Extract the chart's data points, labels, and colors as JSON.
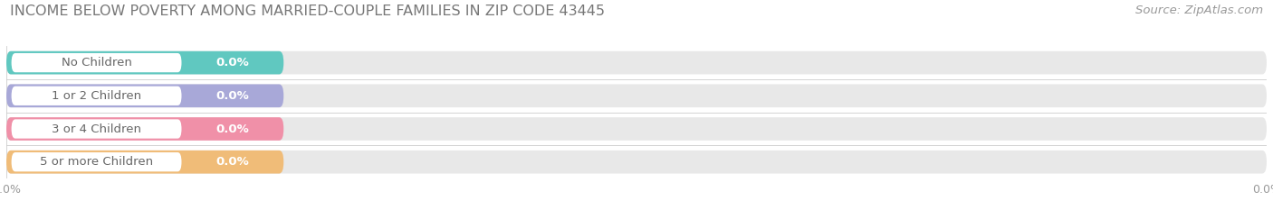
{
  "title": "INCOME BELOW POVERTY AMONG MARRIED-COUPLE FAMILIES IN ZIP CODE 43445",
  "source": "Source: ZipAtlas.com",
  "categories": [
    "No Children",
    "1 or 2 Children",
    "3 or 4 Children",
    "5 or more Children"
  ],
  "values": [
    0.0,
    0.0,
    0.0,
    0.0
  ],
  "bar_colors": [
    "#60c8c0",
    "#a8a8d8",
    "#f090a8",
    "#f0bc78"
  ],
  "bar_bg_color": "#e8e8e8",
  "label_bg_color": "#ffffff",
  "title_fontsize": 11.5,
  "source_fontsize": 9.5,
  "label_fontsize": 9.5,
  "value_fontsize": 9.5,
  "tick_fontsize": 9,
  "background_color": "#ffffff",
  "fig_width": 14.06,
  "fig_height": 2.33
}
